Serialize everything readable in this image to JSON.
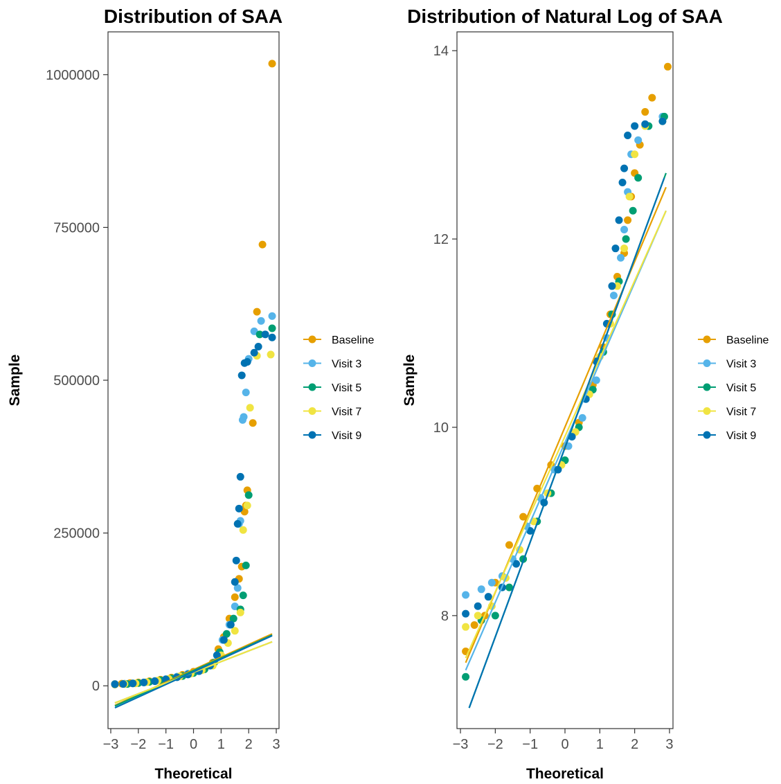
{
  "series_colors": {
    "Baseline": "#E69F00",
    "Visit 3": "#56B4E9",
    "Visit 5": "#009E73",
    "Visit 7": "#F0E442",
    "Visit 9": "#0072B2"
  },
  "chart_data": [
    {
      "type": "scatter",
      "subtype": "qq-plot",
      "title": "Distribution of SAA",
      "xlabel": "Theoretical",
      "ylabel": "Sample",
      "xlim": [
        -3.1,
        3.1
      ],
      "ylim": [
        -70000,
        1070000
      ],
      "xticks": [
        -3,
        -2,
        -1,
        0,
        1,
        2,
        3
      ],
      "xtick_labels": [
        "−3",
        "−2",
        "−1",
        "0",
        "1",
        "2",
        "3"
      ],
      "yticks": [
        0,
        250000,
        500000,
        750000,
        1000000
      ],
      "ytick_labels": [
        "0",
        "250000",
        "500000",
        "750000",
        "1000000"
      ],
      "grid": false,
      "legend_position": "right",
      "series": [
        {
          "name": "Baseline",
          "points": [
            [
              -2.85,
              3000
            ],
            [
              -2.6,
              3500
            ],
            [
              -2.3,
              4500
            ],
            [
              -2.0,
              5500
            ],
            [
              -1.6,
              7500
            ],
            [
              -1.2,
              10000
            ],
            [
              -0.8,
              13500
            ],
            [
              -0.4,
              18000
            ],
            [
              0,
              23000
            ],
            [
              0.4,
              29000
            ],
            [
              0.7,
              38000
            ],
            [
              0.9,
              60000
            ],
            [
              1.1,
              80000
            ],
            [
              1.3,
              110000
            ],
            [
              1.5,
              145000
            ],
            [
              1.65,
              175000
            ],
            [
              1.75,
              195000
            ],
            [
              1.85,
              285000
            ],
            [
              1.9,
              295000
            ],
            [
              1.95,
              320000
            ],
            [
              2.15,
              430000
            ],
            [
              2.3,
              612000
            ],
            [
              2.5,
              722000
            ],
            [
              2.85,
              1018000
            ]
          ],
          "line": [
            [
              -2.85,
              -32000
            ],
            [
              2.85,
              85000
            ]
          ]
        },
        {
          "name": "Visit 3",
          "points": [
            [
              -2.85,
              3000
            ],
            [
              -2.5,
              3500
            ],
            [
              -2.2,
              4000
            ],
            [
              -1.8,
              5500
            ],
            [
              -1.4,
              8000
            ],
            [
              -1.0,
              11000
            ],
            [
              -0.6,
              15000
            ],
            [
              -0.2,
              20000
            ],
            [
              0.2,
              25000
            ],
            [
              0.6,
              33000
            ],
            [
              0.85,
              50000
            ],
            [
              1.05,
              75000
            ],
            [
              1.3,
              100000
            ],
            [
              1.5,
              130000
            ],
            [
              1.6,
              160000
            ],
            [
              1.65,
              265000
            ],
            [
              1.7,
              270000
            ],
            [
              1.78,
              435000
            ],
            [
              1.82,
              440000
            ],
            [
              1.9,
              480000
            ],
            [
              2.0,
              535000
            ],
            [
              2.2,
              580000
            ],
            [
              2.45,
              597000
            ],
            [
              2.85,
              605000
            ]
          ],
          "line": [
            [
              -2.85,
              -28000
            ],
            [
              2.85,
              72000
            ]
          ]
        },
        {
          "name": "Visit 5",
          "points": [
            [
              -2.85,
              2500
            ],
            [
              -2.4,
              3000
            ],
            [
              -2.0,
              4500
            ],
            [
              -1.6,
              6500
            ],
            [
              -1.2,
              9000
            ],
            [
              -0.8,
              12000
            ],
            [
              -0.4,
              16000
            ],
            [
              0,
              21000
            ],
            [
              0.4,
              27000
            ],
            [
              0.75,
              38000
            ],
            [
              0.95,
              55000
            ],
            [
              1.2,
              85000
            ],
            [
              1.45,
              110000
            ],
            [
              1.7,
              125000
            ],
            [
              1.8,
              148000
            ],
            [
              1.9,
              197000
            ],
            [
              2.0,
              312000
            ],
            [
              2.4,
              575000
            ],
            [
              2.85,
              585000
            ]
          ],
          "line": [
            [
              -2.85,
              -33000
            ],
            [
              2.85,
              83000
            ]
          ]
        },
        {
          "name": "Visit 7",
          "points": [
            [
              -2.85,
              2000
            ],
            [
              -2.5,
              3000
            ],
            [
              -2.1,
              4000
            ],
            [
              -1.7,
              6000
            ],
            [
              -1.3,
              8500
            ],
            [
              -0.9,
              11500
            ],
            [
              -0.5,
              15500
            ],
            [
              -0.1,
              20000
            ],
            [
              0.3,
              25500
            ],
            [
              0.7,
              33000
            ],
            [
              1.0,
              50000
            ],
            [
              1.25,
              70000
            ],
            [
              1.5,
              90000
            ],
            [
              1.7,
              120000
            ],
            [
              1.8,
              255000
            ],
            [
              1.95,
              295000
            ],
            [
              2.05,
              455000
            ],
            [
              2.3,
              540000
            ],
            [
              2.8,
              542000
            ]
          ],
          "line": [
            [
              -2.85,
              -28000
            ],
            [
              2.85,
              72000
            ]
          ]
        },
        {
          "name": "Visit 9",
          "points": [
            [
              -2.85,
              2500
            ],
            [
              -2.55,
              3000
            ],
            [
              -2.2,
              4000
            ],
            [
              -1.8,
              5500
            ],
            [
              -1.4,
              7500
            ],
            [
              -1.0,
              10500
            ],
            [
              -0.6,
              14000
            ],
            [
              -0.2,
              18500
            ],
            [
              0.2,
              24000
            ],
            [
              0.6,
              33000
            ],
            [
              0.85,
              50000
            ],
            [
              1.1,
              75000
            ],
            [
              1.35,
              100000
            ],
            [
              1.5,
              170000
            ],
            [
              1.55,
              205000
            ],
            [
              1.6,
              265000
            ],
            [
              1.65,
              290000
            ],
            [
              1.7,
              342000
            ],
            [
              1.75,
              508000
            ],
            [
              1.85,
              528000
            ],
            [
              1.95,
              530000
            ],
            [
              2.2,
              545000
            ],
            [
              2.35,
              555000
            ],
            [
              2.6,
              575000
            ],
            [
              2.85,
              570000
            ]
          ],
          "line": [
            [
              -2.85,
              -36000
            ],
            [
              2.85,
              82000
            ]
          ]
        }
      ]
    },
    {
      "type": "scatter",
      "subtype": "qq-plot",
      "title": "Distribution of Natural Log of SAA",
      "xlabel": "Theoretical",
      "ylabel": "Sample",
      "xlim": [
        -3.1,
        3.1
      ],
      "ylim": [
        6.8,
        14.2
      ],
      "xticks": [
        -3,
        -2,
        -1,
        0,
        1,
        2,
        3
      ],
      "xtick_labels": [
        "−3",
        "−2",
        "−1",
        "0",
        "1",
        "2",
        "3"
      ],
      "yticks": [
        8,
        10,
        12,
        14
      ],
      "ytick_labels": [
        "8",
        "10",
        "12",
        "14"
      ],
      "grid": false,
      "legend_position": "right",
      "series": [
        {
          "name": "Baseline",
          "points": [
            [
              -2.85,
              7.62
            ],
            [
              -2.6,
              7.9
            ],
            [
              -2.3,
              8.0
            ],
            [
              -2.0,
              8.35
            ],
            [
              -1.6,
              8.75
            ],
            [
              -1.2,
              9.05
            ],
            [
              -0.8,
              9.35
            ],
            [
              -0.4,
              9.6
            ],
            [
              0,
              9.8
            ],
            [
              0.4,
              10.05
            ],
            [
              0.8,
              10.45
            ],
            [
              1.1,
              10.85
            ],
            [
              1.3,
              11.2
            ],
            [
              1.5,
              11.6
            ],
            [
              1.7,
              11.85
            ],
            [
              1.8,
              12.2
            ],
            [
              1.9,
              12.45
            ],
            [
              2.0,
              12.7
            ],
            [
              2.15,
              13.0
            ],
            [
              2.3,
              13.35
            ],
            [
              2.5,
              13.5
            ],
            [
              2.95,
              13.83
            ]
          ],
          "line": [
            [
              -2.85,
              7.5
            ],
            [
              2.9,
              12.55
            ]
          ]
        },
        {
          "name": "Visit 3",
          "points": [
            [
              -2.85,
              8.22
            ],
            [
              -2.4,
              8.28
            ],
            [
              -2.1,
              8.35
            ],
            [
              -1.8,
              8.42
            ],
            [
              -1.5,
              8.6
            ],
            [
              -1.1,
              8.95
            ],
            [
              -0.7,
              9.25
            ],
            [
              -0.3,
              9.55
            ],
            [
              0.1,
              9.8
            ],
            [
              0.5,
              10.1
            ],
            [
              0.9,
              10.5
            ],
            [
              1.2,
              10.95
            ],
            [
              1.4,
              11.4
            ],
            [
              1.6,
              11.8
            ],
            [
              1.7,
              12.1
            ],
            [
              1.8,
              12.5
            ],
            [
              1.9,
              12.9
            ],
            [
              2.1,
              13.05
            ],
            [
              2.4,
              13.2
            ],
            [
              2.8,
              13.3
            ]
          ],
          "line": [
            [
              -2.85,
              7.42
            ],
            [
              2.9,
              12.3
            ]
          ]
        },
        {
          "name": "Visit 5",
          "points": [
            [
              -2.85,
              7.35
            ],
            [
              -2.4,
              7.95
            ],
            [
              -2.0,
              8.0
            ],
            [
              -1.6,
              8.3
            ],
            [
              -1.2,
              8.6
            ],
            [
              -0.8,
              9.0
            ],
            [
              -0.4,
              9.3
            ],
            [
              0,
              9.65
            ],
            [
              0.4,
              10.0
            ],
            [
              0.8,
              10.4
            ],
            [
              1.1,
              10.8
            ],
            [
              1.35,
              11.2
            ],
            [
              1.55,
              11.55
            ],
            [
              1.75,
              12.0
            ],
            [
              1.95,
              12.3
            ],
            [
              2.1,
              12.65
            ],
            [
              2.4,
              13.2
            ],
            [
              2.85,
              13.3
            ]
          ],
          "line": [
            [
              -2.75,
              7.02
            ],
            [
              2.9,
              12.7
            ]
          ]
        },
        {
          "name": "Visit 7",
          "points": [
            [
              -2.85,
              7.88
            ],
            [
              -2.5,
              8.0
            ],
            [
              -2.1,
              8.1
            ],
            [
              -1.7,
              8.4
            ],
            [
              -1.3,
              8.7
            ],
            [
              -0.9,
              9.0
            ],
            [
              -0.5,
              9.3
            ],
            [
              -0.1,
              9.6
            ],
            [
              0.3,
              9.95
            ],
            [
              0.7,
              10.35
            ],
            [
              1.0,
              10.75
            ],
            [
              1.3,
              11.1
            ],
            [
              1.5,
              11.5
            ],
            [
              1.7,
              11.9
            ],
            [
              1.85,
              12.45
            ],
            [
              2.0,
              12.9
            ],
            [
              2.3,
              13.2
            ],
            [
              2.8,
              13.25
            ]
          ],
          "line": [
            [
              -2.85,
              7.55
            ],
            [
              2.9,
              12.3
            ]
          ]
        },
        {
          "name": "Visit 9",
          "points": [
            [
              -2.85,
              8.02
            ],
            [
              -2.5,
              8.1
            ],
            [
              -2.2,
              8.2
            ],
            [
              -1.8,
              8.3
            ],
            [
              -1.4,
              8.55
            ],
            [
              -1.0,
              8.9
            ],
            [
              -0.6,
              9.2
            ],
            [
              -0.2,
              9.55
            ],
            [
              0.2,
              9.9
            ],
            [
              0.6,
              10.3
            ],
            [
              0.9,
              10.7
            ],
            [
              1.2,
              11.1
            ],
            [
              1.35,
              11.5
            ],
            [
              1.45,
              11.9
            ],
            [
              1.55,
              12.2
            ],
            [
              1.65,
              12.6
            ],
            [
              1.7,
              12.75
            ],
            [
              1.8,
              13.1
            ],
            [
              2.0,
              13.2
            ],
            [
              2.3,
              13.22
            ],
            [
              2.8,
              13.25
            ]
          ],
          "line": [
            [
              -2.75,
              7.02
            ],
            [
              2.85,
              12.65
            ]
          ]
        }
      ]
    }
  ]
}
